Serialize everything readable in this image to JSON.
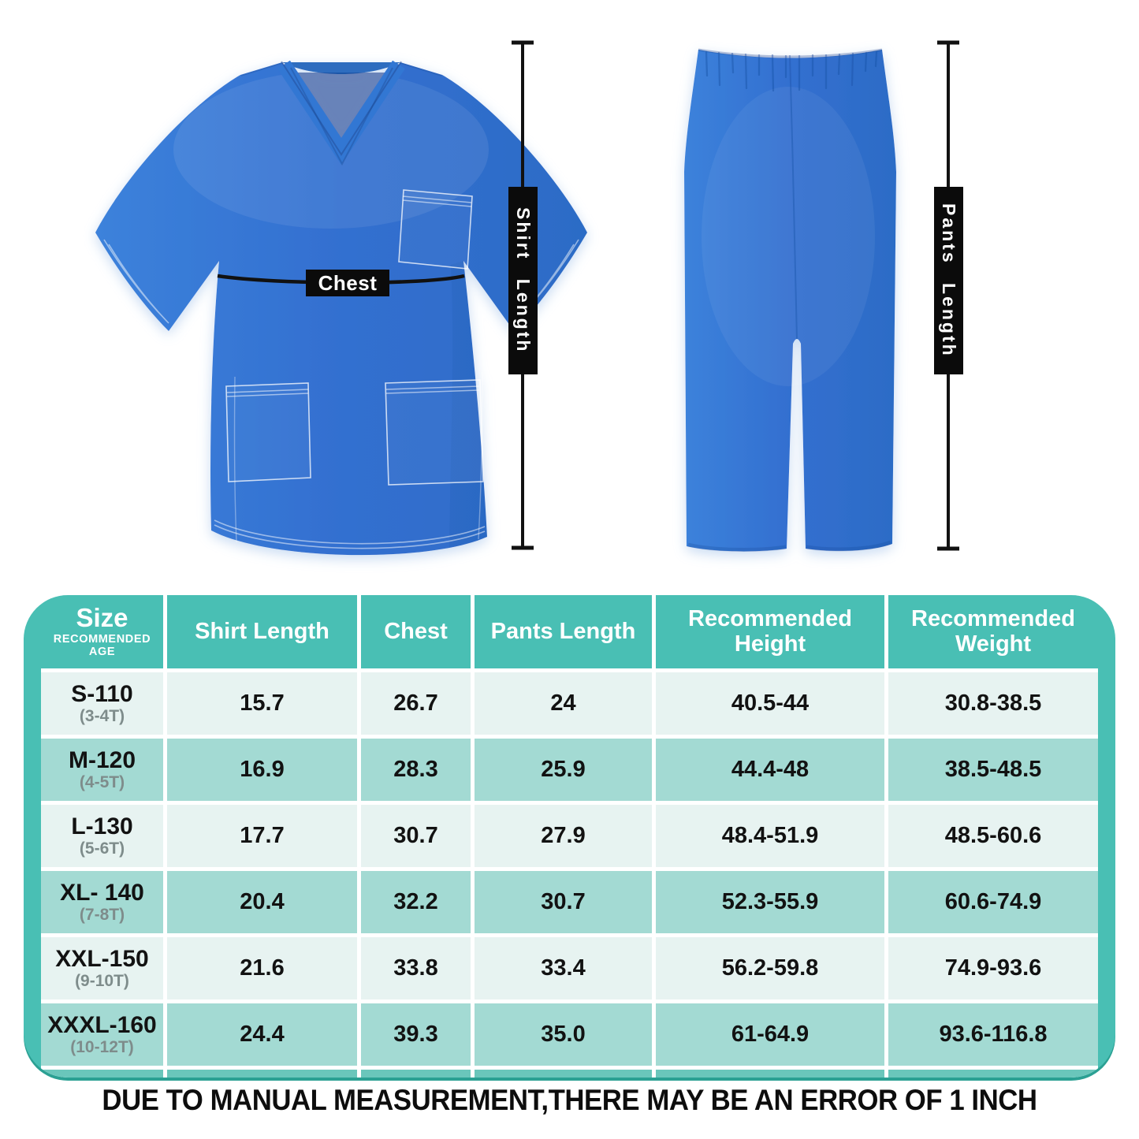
{
  "colors": {
    "background": "#ffffff",
    "accent": "#49bfb4",
    "row_light": "#e7f3f1",
    "row_medium": "#a3dad3",
    "table_edge": "#6ac6bb",
    "table_shadow": "#2ba093",
    "header_text": "#ffffff",
    "cell_text": "#121212",
    "age_text": "#7e8c8b",
    "annotation_bg": "#0b0b0b",
    "annotation_text": "#ffffff",
    "garment_blue": "#336fd0",
    "line_color": "#111111"
  },
  "diagram": {
    "chest_label": "Chest",
    "shirt_length_label": "Shirt Length",
    "pants_length_label": "Pants Length"
  },
  "table": {
    "header": {
      "size_label": "Size",
      "size_sub": "RECOMMENDED AGE",
      "columns": [
        "Shirt Length",
        "Chest",
        "Pants Length",
        "Recommended Height",
        "Recommended Weight"
      ]
    }
  },
  "chart_data": {
    "type": "table",
    "title": "",
    "columns": [
      "Size (Recommended Age)",
      "Shirt Length",
      "Chest",
      "Pants Length",
      "Recommended Height",
      "Recommended Weight"
    ],
    "rows": [
      {
        "size": "S-110",
        "age": "(3-4T)",
        "shirt_length": "15.7",
        "chest": "26.7",
        "pants_length": "24",
        "height": "40.5-44",
        "weight": "30.8-38.5"
      },
      {
        "size": "M-120",
        "age": "(4-5T)",
        "shirt_length": "16.9",
        "chest": "28.3",
        "pants_length": "25.9",
        "height": "44.4-48",
        "weight": "38.5-48.5"
      },
      {
        "size": "L-130",
        "age": "(5-6T)",
        "shirt_length": "17.7",
        "chest": "30.7",
        "pants_length": "27.9",
        "height": "48.4-51.9",
        "weight": "48.5-60.6"
      },
      {
        "size": "XL- 140",
        "age": "(7-8T)",
        "shirt_length": "20.4",
        "chest": "32.2",
        "pants_length": "30.7",
        "height": "52.3-55.9",
        "weight": "60.6-74.9"
      },
      {
        "size": "XXL-150",
        "age": "(9-10T)",
        "shirt_length": "21.6",
        "chest": "33.8",
        "pants_length": "33.4",
        "height": "56.2-59.8",
        "weight": "74.9-93.6"
      },
      {
        "size": "XXXL-160",
        "age": "(10-12T)",
        "shirt_length": "24.4",
        "chest": "39.3",
        "pants_length": "35.0",
        "height": "61-64.9",
        "weight": "93.6-116.8"
      }
    ]
  },
  "footer": {
    "disclaimer": "DUE TO MANUAL MEASUREMENT,THERE MAY BE AN ERROR OF 1 INCH"
  }
}
